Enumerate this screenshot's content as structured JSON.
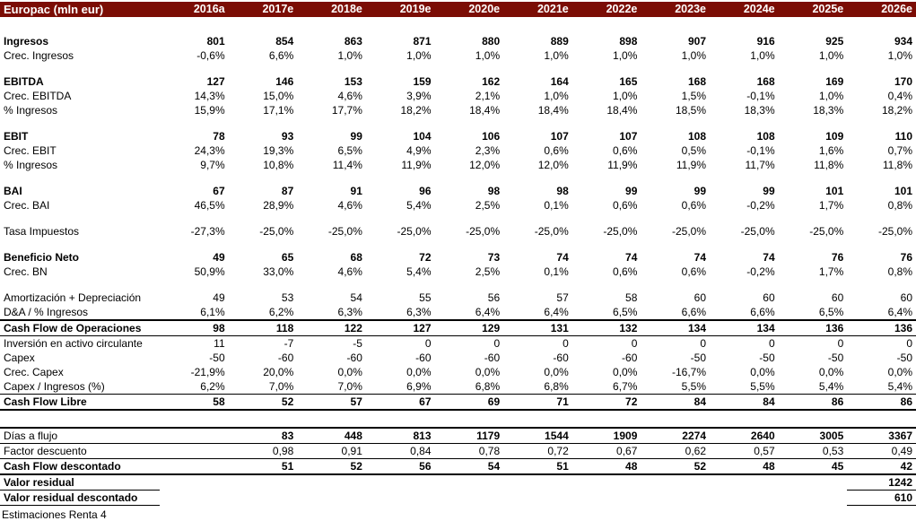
{
  "header": {
    "title": "Europac (mln eur)",
    "years": [
      "2016a",
      "2017e",
      "2018e",
      "2019e",
      "2020e",
      "2021e",
      "2022e",
      "2023e",
      "2024e",
      "2025e",
      "2026e"
    ]
  },
  "table": {
    "rows": [
      {
        "label": "Ingresos",
        "bold": true,
        "values": [
          "801",
          "854",
          "863",
          "871",
          "880",
          "889",
          "898",
          "907",
          "916",
          "925",
          "934"
        ]
      },
      {
        "label": "Crec. Ingresos",
        "values": [
          "-0,6%",
          "6,6%",
          "1,0%",
          "1,0%",
          "1,0%",
          "1,0%",
          "1,0%",
          "1,0%",
          "1,0%",
          "1,0%",
          "1,0%"
        ]
      },
      {
        "type": "spacer"
      },
      {
        "label": "EBITDA",
        "bold": true,
        "values": [
          "127",
          "146",
          "153",
          "159",
          "162",
          "164",
          "165",
          "168",
          "168",
          "169",
          "170"
        ]
      },
      {
        "label": "Crec. EBITDA",
        "values": [
          "14,3%",
          "15,0%",
          "4,6%",
          "3,9%",
          "2,1%",
          "1,0%",
          "1,0%",
          "1,5%",
          "-0,1%",
          "1,0%",
          "0,4%"
        ]
      },
      {
        "label": "% Ingresos",
        "values": [
          "15,9%",
          "17,1%",
          "17,7%",
          "18,2%",
          "18,4%",
          "18,4%",
          "18,4%",
          "18,5%",
          "18,3%",
          "18,3%",
          "18,2%"
        ]
      },
      {
        "type": "spacer"
      },
      {
        "label": "EBIT",
        "bold": true,
        "values": [
          "78",
          "93",
          "99",
          "104",
          "106",
          "107",
          "107",
          "108",
          "108",
          "109",
          "110"
        ]
      },
      {
        "label": "Crec. EBIT",
        "values": [
          "24,3%",
          "19,3%",
          "6,5%",
          "4,9%",
          "2,3%",
          "0,6%",
          "0,6%",
          "0,5%",
          "-0,1%",
          "1,6%",
          "0,7%"
        ]
      },
      {
        "label": "% Ingresos",
        "values": [
          "9,7%",
          "10,8%",
          "11,4%",
          "11,9%",
          "12,0%",
          "12,0%",
          "11,9%",
          "11,9%",
          "11,7%",
          "11,8%",
          "11,8%"
        ]
      },
      {
        "type": "spacer"
      },
      {
        "label": "BAI",
        "bold": true,
        "values": [
          "67",
          "87",
          "91",
          "96",
          "98",
          "98",
          "99",
          "99",
          "99",
          "101",
          "101"
        ]
      },
      {
        "label": "Crec. BAI",
        "values": [
          "46,5%",
          "28,9%",
          "4,6%",
          "5,4%",
          "2,5%",
          "0,1%",
          "0,6%",
          "0,6%",
          "-0,2%",
          "1,7%",
          "0,8%"
        ]
      },
      {
        "type": "spacer"
      },
      {
        "label": "Tasa Impuestos",
        "values": [
          "-27,3%",
          "-25,0%",
          "-25,0%",
          "-25,0%",
          "-25,0%",
          "-25,0%",
          "-25,0%",
          "-25,0%",
          "-25,0%",
          "-25,0%",
          "-25,0%"
        ]
      },
      {
        "type": "spacer"
      },
      {
        "label": "Beneficio Neto",
        "bold": true,
        "values": [
          "49",
          "65",
          "68",
          "72",
          "73",
          "74",
          "74",
          "74",
          "74",
          "76",
          "76"
        ]
      },
      {
        "label": "Crec. BN",
        "values": [
          "50,9%",
          "33,0%",
          "4,6%",
          "5,4%",
          "2,5%",
          "0,1%",
          "0,6%",
          "0,6%",
          "-0,2%",
          "1,7%",
          "0,8%"
        ]
      },
      {
        "type": "spacer"
      },
      {
        "label": "Amortización + Depreciación",
        "values": [
          "49",
          "53",
          "54",
          "55",
          "56",
          "57",
          "58",
          "60",
          "60",
          "60",
          "60"
        ]
      },
      {
        "label": "D&A / % Ingresos",
        "values": [
          "6,1%",
          "6,2%",
          "6,3%",
          "6,3%",
          "6,4%",
          "6,4%",
          "6,5%",
          "6,6%",
          "6,6%",
          "6,5%",
          "6,4%"
        ]
      },
      {
        "label": "Cash Flow de Operaciones",
        "bold": true,
        "border_top": "thick",
        "border_bottom": "thin",
        "values": [
          "98",
          "118",
          "122",
          "127",
          "129",
          "131",
          "132",
          "134",
          "134",
          "136",
          "136"
        ]
      },
      {
        "label": "Inversión en activo circulante",
        "values": [
          "11",
          "-7",
          "-5",
          "0",
          "0",
          "0",
          "0",
          "0",
          "0",
          "0",
          "0"
        ]
      },
      {
        "label": "Capex",
        "values": [
          "-50",
          "-60",
          "-60",
          "-60",
          "-60",
          "-60",
          "-60",
          "-50",
          "-50",
          "-50",
          "-50"
        ]
      },
      {
        "label": "Crec. Capex",
        "values": [
          "-21,9%",
          "20,0%",
          "0,0%",
          "0,0%",
          "0,0%",
          "0,0%",
          "0,0%",
          "-16,7%",
          "0,0%",
          "0,0%",
          "0,0%"
        ]
      },
      {
        "label": "Capex / Ingresos (%)",
        "border_bottom": "thin",
        "values": [
          "6,2%",
          "7,0%",
          "7,0%",
          "6,9%",
          "6,8%",
          "6,8%",
          "6,7%",
          "5,5%",
          "5,5%",
          "5,4%",
          "5,4%"
        ]
      },
      {
        "label": "Cash Flow Libre",
        "bold": true,
        "border_bottom": "thick",
        "values": [
          "58",
          "52",
          "57",
          "67",
          "69",
          "71",
          "72",
          "84",
          "84",
          "86",
          "86"
        ]
      },
      {
        "type": "spacer",
        "h": 18
      },
      {
        "label": "Días a flujo",
        "bold_values": true,
        "border_top": "thick",
        "border_bottom": "thin",
        "values": [
          "",
          "83",
          "448",
          "813",
          "1179",
          "1544",
          "1909",
          "2274",
          "2640",
          "3005",
          "3367"
        ]
      },
      {
        "label": "Factor descuento",
        "border_bottom": "thin",
        "values": [
          "",
          "0,98",
          "0,91",
          "0,84",
          "0,78",
          "0,72",
          "0,67",
          "0,62",
          "0,57",
          "0,53",
          "0,49"
        ]
      },
      {
        "label": "Cash Flow descontado",
        "bold": true,
        "border_bottom": "thick",
        "values": [
          "",
          "51",
          "52",
          "56",
          "54",
          "51",
          "48",
          "52",
          "48",
          "45",
          "42"
        ]
      },
      {
        "label": "Valor residual",
        "bold": true,
        "label_underline": true,
        "last_underline": true,
        "values": [
          "",
          "",
          "",
          "",
          "",
          "",
          "",
          "",
          "",
          "",
          "1242"
        ]
      },
      {
        "label": "Valor residual descontado",
        "bold": true,
        "label_underline": true,
        "last_underline": true,
        "values": [
          "",
          "",
          "",
          "",
          "",
          "",
          "",
          "",
          "",
          "",
          "610"
        ]
      }
    ]
  },
  "footer": {
    "note": "Estimaciones Renta 4"
  },
  "colors": {
    "header_bg": "#7B0D05",
    "header_text": "#FFFFFF",
    "border": "#000000"
  }
}
